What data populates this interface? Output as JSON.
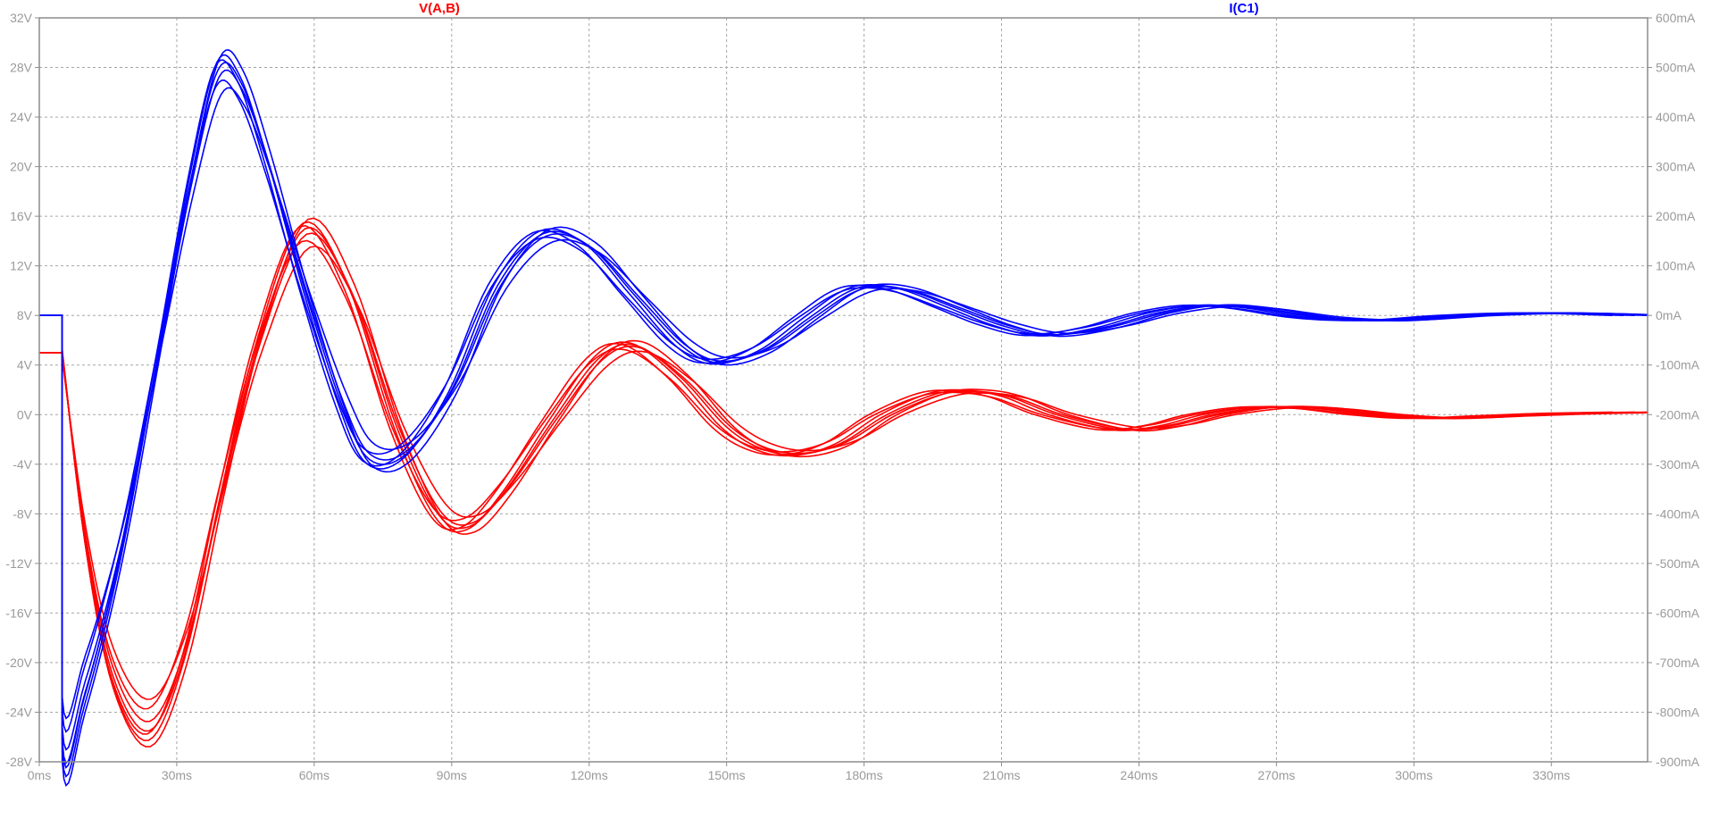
{
  "chart_data": {
    "type": "line",
    "title": "",
    "trace_labels": {
      "left": "V(A,B)",
      "right": "I(C1)"
    },
    "x_axis": {
      "range_ms": [
        0,
        351
      ],
      "ticks": [
        0,
        30,
        60,
        90,
        120,
        150,
        180,
        210,
        240,
        270,
        300,
        330
      ],
      "tick_labels": [
        "0ms",
        "30ms",
        "60ms",
        "90ms",
        "120ms",
        "150ms",
        "180ms",
        "210ms",
        "240ms",
        "270ms",
        "300ms",
        "330ms"
      ]
    },
    "y_left": {
      "range": [
        -28,
        32
      ],
      "ticks": [
        32,
        28,
        24,
        20,
        16,
        12,
        8,
        4,
        0,
        -4,
        -8,
        -12,
        -16,
        -20,
        -24,
        -28
      ],
      "tick_labels": [
        "32V",
        "28V",
        "24V",
        "20V",
        "16V",
        "12V",
        "8V",
        "4V",
        "0V",
        "-4V",
        "-8V",
        "-12V",
        "-16V",
        "-20V",
        "-24V",
        "-28V"
      ]
    },
    "y_right": {
      "range": [
        -900,
        600
      ],
      "ticks": [
        600,
        500,
        400,
        300,
        200,
        100,
        0,
        -100,
        -200,
        -300,
        -400,
        -500,
        -600,
        -700,
        -800,
        -900
      ],
      "tick_labels": [
        "600mA",
        "500mA",
        "400mA",
        "300mA",
        "200mA",
        "100mA",
        "0mA",
        "-100mA",
        "-200mA",
        "-300mA",
        "-400mA",
        "-500mA",
        "-600mA",
        "-700mA",
        "-800mA",
        "-900mA"
      ]
    },
    "grid": true,
    "grid_style": "dashed",
    "colors": {
      "voltage": "#ff0000",
      "current": "#0000ff",
      "grid": "#a6a6a6",
      "axis": "#8c8c8c",
      "tick_text": "#9a9a9a"
    },
    "step_time_ms": 5,
    "series": [
      {
        "axis": "left",
        "color": "#ff0000",
        "initial_value_V": 5,
        "runs": 7,
        "nominal_points_ms_V": [
          [
            5,
            5
          ],
          [
            10,
            -10
          ],
          [
            16,
            -21
          ],
          [
            24,
            -25.5
          ],
          [
            32,
            -19
          ],
          [
            40,
            -6
          ],
          [
            48,
            6
          ],
          [
            58,
            15
          ],
          [
            68,
            10
          ],
          [
            78,
            -1
          ],
          [
            87,
            -8
          ],
          [
            94,
            -9
          ],
          [
            102,
            -6
          ],
          [
            112,
            -0.5
          ],
          [
            122,
            4.5
          ],
          [
            130,
            5.6
          ],
          [
            140,
            3
          ],
          [
            150,
            -1
          ],
          [
            158,
            -2.8
          ],
          [
            166,
            -3.2
          ],
          [
            175,
            -2.3
          ],
          [
            185,
            0
          ],
          [
            196,
            1.7
          ],
          [
            204,
            1.9
          ],
          [
            212,
            1.4
          ],
          [
            222,
            0
          ],
          [
            236,
            -1.2
          ],
          [
            246,
            -0.9
          ],
          [
            256,
            0
          ],
          [
            268,
            0.6
          ],
          [
            280,
            0.5
          ],
          [
            292,
            0
          ],
          [
            305,
            -0.3
          ],
          [
            320,
            -0.1
          ],
          [
            335,
            0.1
          ],
          [
            351,
            0.2
          ]
        ]
      },
      {
        "axis": "right",
        "color": "#0000ff",
        "initial_value_mA": 0,
        "runs": 7,
        "nominal_points_ms_mA": [
          [
            5,
            0
          ],
          [
            5,
            -855
          ],
          [
            10,
            -760
          ],
          [
            18,
            -470
          ],
          [
            26,
            -80
          ],
          [
            33,
            270
          ],
          [
            39,
            495
          ],
          [
            44,
            470
          ],
          [
            50,
            310
          ],
          [
            58,
            50
          ],
          [
            66,
            -180
          ],
          [
            72,
            -290
          ],
          [
            80,
            -280
          ],
          [
            90,
            -150
          ],
          [
            100,
            60
          ],
          [
            110,
            165
          ],
          [
            120,
            140
          ],
          [
            130,
            40
          ],
          [
            140,
            -60
          ],
          [
            148,
            -95
          ],
          [
            158,
            -70
          ],
          [
            168,
            -5
          ],
          [
            176,
            45
          ],
          [
            182,
            60
          ],
          [
            190,
            50
          ],
          [
            200,
            15
          ],
          [
            210,
            -20
          ],
          [
            220,
            -40
          ],
          [
            232,
            -25
          ],
          [
            244,
            5
          ],
          [
            255,
            20
          ],
          [
            265,
            15
          ],
          [
            280,
            -5
          ],
          [
            295,
            -10
          ],
          [
            312,
            0
          ],
          [
            330,
            5
          ],
          [
            351,
            0
          ]
        ]
      }
    ]
  }
}
